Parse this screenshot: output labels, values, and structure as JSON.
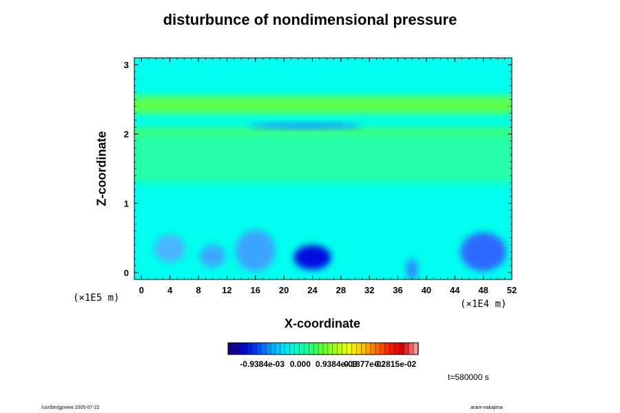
{
  "chart_data": {
    "type": "heatmap",
    "title": "disturbunce of nondimensional pressure",
    "xlabel": "X-coordinate",
    "ylabel": "Z-coordinate",
    "x_unit": "(×1E4 m)",
    "z_unit": "(×1E5 m)",
    "xlim": [
      -1,
      52
    ],
    "ylim": [
      -0.1,
      3.1
    ],
    "x_ticks": [
      "0",
      "4",
      "8",
      "12",
      "16",
      "20",
      "24",
      "28",
      "32",
      "36",
      "40",
      "44",
      "48",
      "52"
    ],
    "y_ticks": [
      "0",
      "1",
      "2",
      "3"
    ],
    "colorbar": {
      "ticks": [
        "-0.9384e-03",
        "0.000",
        "0.9384e-03",
        "0.1877e-02",
        "0.2815e-02"
      ],
      "colors": [
        "#1a0080",
        "#0000c8",
        "#0040ff",
        "#00a0ff",
        "#00e0ff",
        "#00ffd0",
        "#20ff80",
        "#60ff30",
        "#b0ff10",
        "#f0ff00",
        "#ffc000",
        "#ff7000",
        "#ff2000",
        "#d00000",
        "#ff9090"
      ]
    },
    "field": {
      "background": "#00ffee",
      "bands": [
        {
          "z_low": 2.3,
          "z_high": 2.55,
          "color": "#6cff30"
        },
        {
          "z_low": 1.95,
          "z_high": 2.08,
          "color": "#5cff40"
        },
        {
          "z_low": 1.3,
          "z_high": 2.0,
          "color": "#2cffa0"
        }
      ],
      "features": [
        {
          "x": 24,
          "z": 0.22,
          "rx": 2.6,
          "rz": 0.18,
          "color": "#0000e0"
        },
        {
          "x": 48,
          "z": 0.3,
          "rx": 3.2,
          "rz": 0.28,
          "color": "#3060ff"
        },
        {
          "x": 16,
          "z": 0.32,
          "rx": 2.8,
          "rz": 0.3,
          "color": "#40a0ff"
        },
        {
          "x": 10,
          "z": 0.24,
          "rx": 1.8,
          "rz": 0.16,
          "color": "#40a0ff"
        },
        {
          "x": 4,
          "z": 0.35,
          "rx": 2.2,
          "rz": 0.2,
          "color": "#50b0ff"
        },
        {
          "x": 38,
          "z": 0.05,
          "rx": 0.8,
          "rz": 0.15,
          "color": "#3080ff"
        },
        {
          "x": 23,
          "z": 2.12,
          "rx": 8,
          "rz": 0.04,
          "color": "#2080ff"
        }
      ]
    }
  },
  "time_label": "t=580000 s",
  "footer_left": "/usr/bin/gpview 2005-07-22",
  "footer_right": "arare-nakajima"
}
